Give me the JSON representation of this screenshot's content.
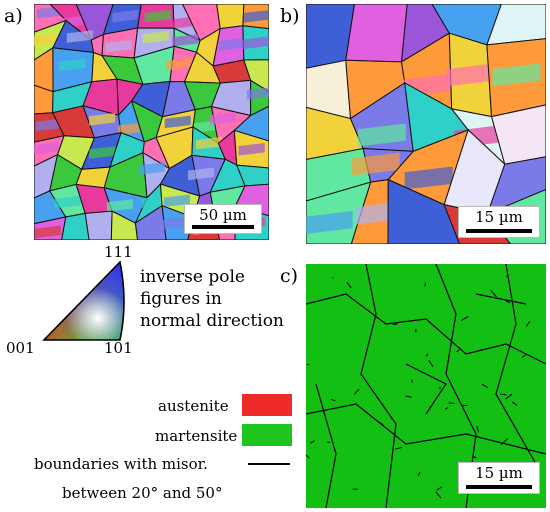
{
  "panels": {
    "a": {
      "label": "a)",
      "scale": "50 µm"
    },
    "b": {
      "label": "b)",
      "scale": "15 µm"
    },
    "c": {
      "label": "c)",
      "scale": "15 µm"
    }
  },
  "ipf": {
    "corner_111": "111",
    "corner_001": "001",
    "corner_101": "101",
    "caption_line1": "inverse pole",
    "caption_line2": "figures in",
    "caption_line3": "normal direction"
  },
  "legend": {
    "austenite": "austenite",
    "austenite_color": "#ee2a2a",
    "martensite": "martensite",
    "martensite_color": "#1ec51e",
    "boundary_line1": "boundaries with misor.",
    "boundary_line2": "between 20° and 50°"
  },
  "phase_map_color": "#13bf13"
}
